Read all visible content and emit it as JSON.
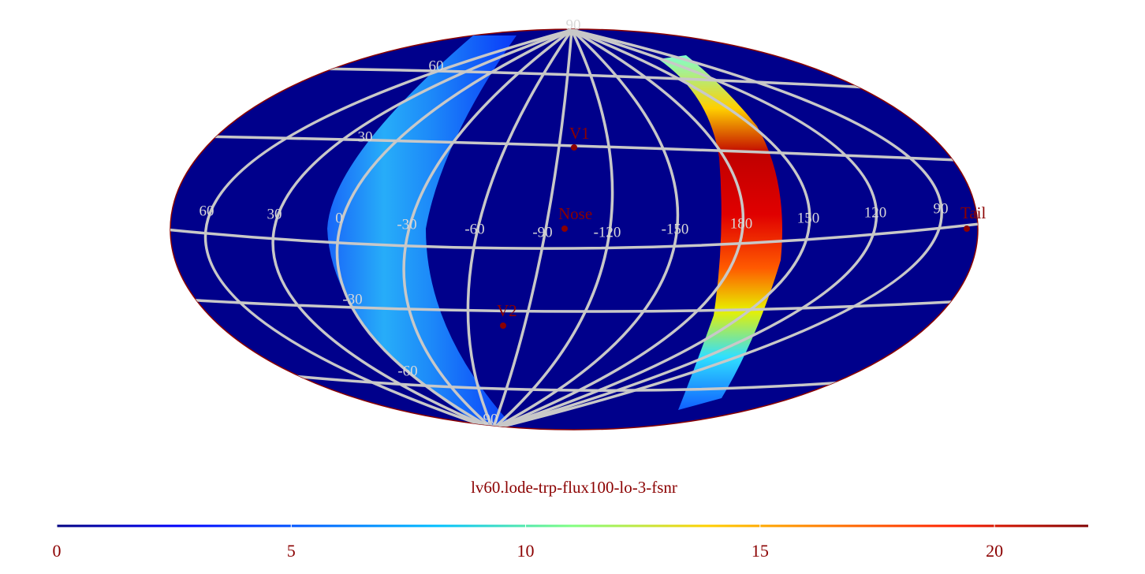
{
  "title": "lv60.lode-trp-flux100-lo-3-fsnr",
  "meridian_labels": [
    60,
    30,
    0,
    -30,
    -60,
    -90,
    -120,
    -150,
    180,
    150,
    120,
    90
  ],
  "parallel_labels": [
    90,
    60,
    30,
    -30,
    -60,
    90
  ],
  "markers": [
    "V1",
    "Nose",
    "V2",
    "Tail"
  ],
  "colorbar": {
    "lim": [
      0,
      22
    ],
    "ticks": [
      0,
      5,
      10,
      15,
      20
    ]
  }
}
